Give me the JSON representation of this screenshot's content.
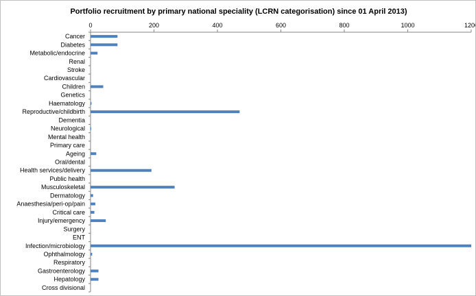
{
  "chart_data": {
    "type": "bar",
    "orientation": "horizontal",
    "title": "Portfolio recruitment by  primary national speciality (LCRN categorisation) since 01 April 2013)",
    "xlabel": "",
    "ylabel": "",
    "xlim": [
      0,
      1200
    ],
    "x_ticks": [
      0,
      200,
      400,
      600,
      800,
      1000,
      1200
    ],
    "x_axis_position": "top",
    "grid": false,
    "legend": "none",
    "categories": [
      "Cancer",
      "Diabetes",
      "Metabolic/endocrine",
      "Renal",
      "Stroke",
      "Cardiovascular",
      "Children",
      "Genetics",
      "Haematology",
      "Reproductive/childbirth",
      "Dementia",
      "Neurological",
      "Mental health",
      "Primary care",
      "Ageing",
      "Oral/dental",
      "Health services/delivery",
      "Public health",
      "Musculoskeletal",
      "Dermatology",
      "Anaesthesia/peri-op/pain",
      "Critical care",
      "Injury/emergency",
      "Surgery",
      "ENT",
      "Infection/microbiology",
      "Ophthalmology",
      "Respiratory",
      "Gastroenterology",
      "Hepatology",
      "Cross divisional"
    ],
    "values": [
      85,
      85,
      22,
      0,
      0,
      0,
      40,
      0,
      3,
      470,
      0,
      2,
      0,
      0,
      18,
      0,
      192,
      0,
      265,
      8,
      15,
      12,
      48,
      0,
      0,
      1200,
      5,
      0,
      25,
      25,
      0
    ],
    "bar_color": "#4f81bd"
  }
}
